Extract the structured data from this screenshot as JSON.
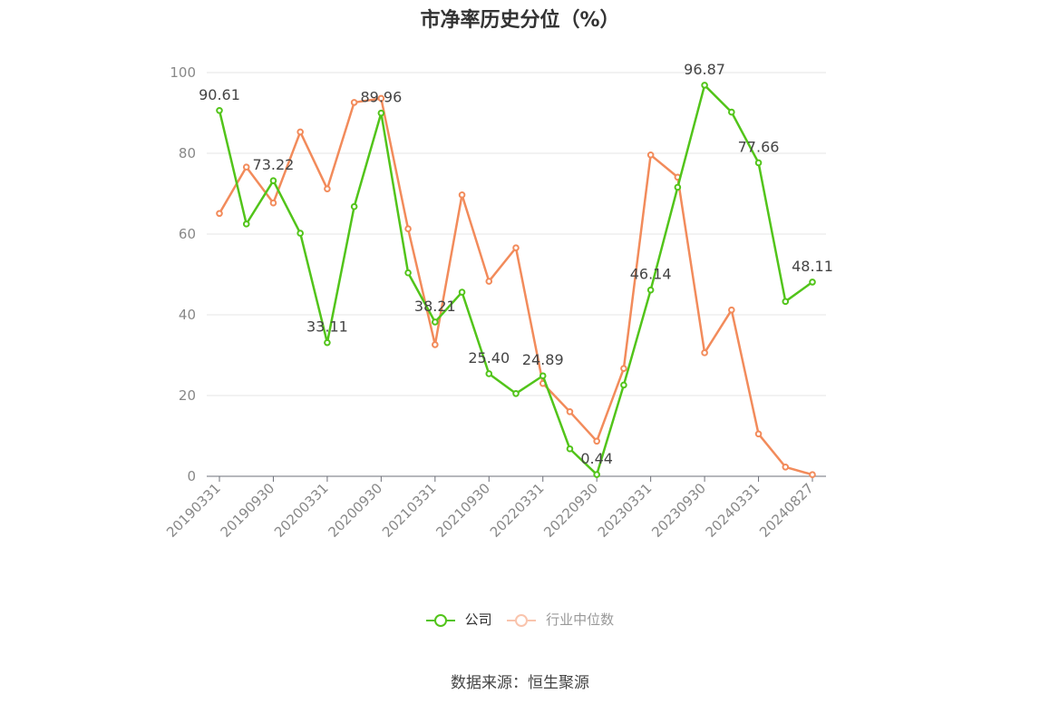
{
  "chart_data": {
    "type": "line",
    "title": "市净率历史分位（%）",
    "x_tick_labels": [
      "20190331",
      "20190930",
      "20200331",
      "20200930",
      "20210331",
      "20210930",
      "20220331",
      "20220930",
      "20230331",
      "20230930",
      "20240331",
      "20240827"
    ],
    "x": [
      "20190331",
      "20190630",
      "20190930",
      "20191231",
      "20200331",
      "20200630",
      "20200930",
      "20201231",
      "20210331",
      "20210630",
      "20210930",
      "20211231",
      "20220331",
      "20220630",
      "20220930",
      "20221231",
      "20230331",
      "20230630",
      "20230930",
      "20231231",
      "20240331",
      "20240630",
      "20240827"
    ],
    "ylim": [
      0,
      100
    ],
    "yticks": [
      0,
      20,
      40,
      60,
      80,
      100
    ],
    "grid": true,
    "series": [
      {
        "name": "公司",
        "color": "#52c41a",
        "values": [
          90.61,
          62.5,
          73.22,
          60.2,
          33.11,
          66.8,
          89.96,
          50.4,
          38.21,
          45.6,
          25.4,
          20.5,
          24.89,
          6.8,
          0.44,
          22.6,
          46.14,
          71.6,
          96.87,
          90.2,
          77.66,
          43.3,
          48.11
        ],
        "labeled_points": [
          {
            "index": 0,
            "text": "90.61"
          },
          {
            "index": 2,
            "text": "73.22"
          },
          {
            "index": 4,
            "text": "33.11"
          },
          {
            "index": 6,
            "text": "89.96"
          },
          {
            "index": 8,
            "text": "38.21"
          },
          {
            "index": 10,
            "text": "25.40"
          },
          {
            "index": 12,
            "text": "24.89"
          },
          {
            "index": 14,
            "text": "0.44"
          },
          {
            "index": 16,
            "text": "46.14"
          },
          {
            "index": 18,
            "text": "96.87"
          },
          {
            "index": 20,
            "text": "77.66"
          },
          {
            "index": 22,
            "text": "48.11"
          }
        ]
      },
      {
        "name": "行业中位数",
        "color": "#f28b5b",
        "values": [
          65.1,
          76.6,
          67.7,
          85.3,
          71.2,
          92.6,
          93.6,
          61.3,
          32.6,
          69.7,
          48.3,
          56.6,
          23.0,
          16.0,
          8.7,
          26.7,
          79.6,
          74.1,
          30.6,
          41.2,
          10.5,
          2.3,
          0.4
        ]
      }
    ],
    "legend": {
      "position": "bottom-center",
      "items": [
        {
          "label": "公司",
          "color": "#52c41a",
          "active": true
        },
        {
          "label": "行业中位数",
          "color": "#f28b5b",
          "active": false
        }
      ]
    }
  },
  "footer": {
    "source": "数据来源：恒生聚源"
  }
}
